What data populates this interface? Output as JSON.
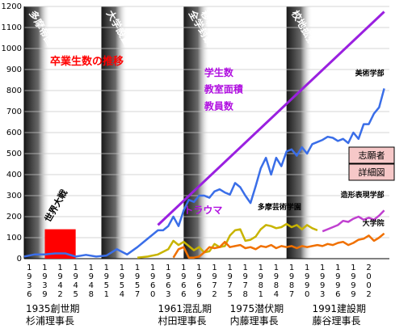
{
  "chart_data": {
    "type": "line",
    "title": "卒業生数の推移",
    "ylim": [
      0,
      1200
    ],
    "yticks": [
      0,
      100,
      200,
      300,
      400,
      500,
      600,
      700,
      800,
      900,
      1000,
      1100,
      1200
    ],
    "xlim": [
      1935,
      2006
    ],
    "x_ticks": [
      {
        "year": 1936,
        "label": "1936"
      },
      {
        "year": 1939,
        "label": "1939"
      },
      {
        "year": 1942,
        "label": "1942"
      },
      {
        "year": 1945,
        "label": "1945"
      },
      {
        "year": 1948,
        "label": "1948"
      },
      {
        "year": 1951,
        "label": "1951"
      },
      {
        "year": 1954,
        "label": "1954"
      },
      {
        "year": 1957,
        "label": "1957"
      },
      {
        "year": 1960,
        "label": "1960"
      },
      {
        "year": 1963,
        "label": "1963"
      },
      {
        "year": 1966,
        "label": "1966"
      },
      {
        "year": 1969,
        "label": "1969"
      },
      {
        "year": 1972,
        "label": "1972"
      },
      {
        "year": 1975,
        "label": "1975"
      },
      {
        "year": 1978,
        "label": "1978"
      },
      {
        "year": 1981,
        "label": "1981"
      },
      {
        "year": 1984,
        "label": "1984"
      },
      {
        "year": 1987,
        "label": "1987"
      },
      {
        "year": 1990,
        "label": "1990"
      },
      {
        "year": 1993,
        "label": "1993"
      },
      {
        "year": 1996,
        "label": "1996"
      },
      {
        "year": 1999,
        "label": "1999"
      },
      {
        "year": 2002,
        "label": "2002"
      }
    ],
    "bands": [
      {
        "start": 1935,
        "end": 1940,
        "label": "多摩帝国"
      },
      {
        "start": 1950,
        "end": 1955,
        "label": "大学設置"
      },
      {
        "start": 1966,
        "end": 1971,
        "label": "全学封鎖 移転開始"
      },
      {
        "start": 1986,
        "end": 1991,
        "label": "校地拡張"
      }
    ],
    "war_bar": {
      "start": 1939,
      "end": 1945,
      "value": 140,
      "label": "世界大戦",
      "color": "#ff0000"
    },
    "series": [
      {
        "name": "美術学部",
        "color": "#3a6ee8",
        "points": [
          [
            1935,
            10
          ],
          [
            1937,
            20
          ],
          [
            1939,
            20
          ],
          [
            1941,
            25
          ],
          [
            1943,
            25
          ],
          [
            1945,
            10
          ],
          [
            1947,
            18
          ],
          [
            1949,
            10
          ],
          [
            1951,
            15
          ],
          [
            1953,
            45
          ],
          [
            1955,
            20
          ],
          [
            1957,
            55
          ],
          [
            1958,
            75
          ],
          [
            1961,
            135
          ],
          [
            1962,
            135
          ],
          [
            1963,
            155
          ],
          [
            1964,
            200
          ],
          [
            1965,
            155
          ],
          [
            1966,
            230
          ],
          [
            1967,
            280
          ],
          [
            1968,
            270
          ],
          [
            1969,
            300
          ],
          [
            1970,
            300
          ],
          [
            1971,
            290
          ],
          [
            1972,
            320
          ],
          [
            1973,
            330
          ],
          [
            1974,
            315
          ],
          [
            1975,
            305
          ],
          [
            1976,
            360
          ],
          [
            1977,
            340
          ],
          [
            1978,
            300
          ],
          [
            1979,
            265
          ],
          [
            1980,
            345
          ],
          [
            1981,
            430
          ],
          [
            1982,
            480
          ],
          [
            1983,
            400
          ],
          [
            1984,
            480
          ],
          [
            1985,
            440
          ],
          [
            1986,
            510
          ],
          [
            1987,
            520
          ],
          [
            1988,
            490
          ],
          [
            1989,
            530
          ],
          [
            1990,
            500
          ],
          [
            1991,
            545
          ],
          [
            1992,
            555
          ],
          [
            1993,
            565
          ],
          [
            1994,
            580
          ],
          [
            1995,
            575
          ],
          [
            1996,
            560
          ],
          [
            1997,
            570
          ],
          [
            1998,
            550
          ],
          [
            1999,
            600
          ],
          [
            2000,
            570
          ],
          [
            2001,
            640
          ],
          [
            2002,
            640
          ],
          [
            2003,
            690
          ],
          [
            2004,
            720
          ],
          [
            2005,
            810
          ]
        ]
      },
      {
        "name": "多摩芸術学園",
        "color": "#c8b400",
        "points": [
          [
            1957,
            5
          ],
          [
            1959,
            10
          ],
          [
            1961,
            20
          ],
          [
            1963,
            45
          ],
          [
            1964,
            85
          ],
          [
            1965,
            65
          ],
          [
            1966,
            80
          ],
          [
            1967,
            60
          ],
          [
            1968,
            40
          ],
          [
            1969,
            55
          ],
          [
            1970,
            30
          ],
          [
            1971,
            35
          ],
          [
            1972,
            70
          ],
          [
            1973,
            55
          ],
          [
            1974,
            60
          ],
          [
            1975,
            110
          ],
          [
            1976,
            135
          ],
          [
            1977,
            140
          ],
          [
            1978,
            85
          ],
          [
            1979,
            90
          ],
          [
            1980,
            105
          ],
          [
            1981,
            140
          ],
          [
            1982,
            160
          ],
          [
            1983,
            155
          ],
          [
            1984,
            145
          ],
          [
            1985,
            150
          ],
          [
            1986,
            165
          ],
          [
            1987,
            150
          ],
          [
            1988,
            160
          ],
          [
            1989,
            140
          ],
          [
            1990,
            160
          ],
          [
            1991,
            145
          ],
          [
            1992,
            135
          ]
        ]
      },
      {
        "name": "造形表現学部",
        "color": "#c040d0",
        "points": [
          [
            1993,
            130
          ],
          [
            1994,
            140
          ],
          [
            1995,
            150
          ],
          [
            1996,
            160
          ],
          [
            1997,
            180
          ],
          [
            1998,
            175
          ],
          [
            1999,
            190
          ],
          [
            2000,
            200
          ],
          [
            2001,
            185
          ],
          [
            2002,
            195
          ],
          [
            2003,
            185
          ],
          [
            2004,
            205
          ],
          [
            2005,
            230
          ]
        ]
      },
      {
        "name": "大学院",
        "color": "#f07000",
        "points": [
          [
            1964,
            5
          ],
          [
            1965,
            45
          ],
          [
            1966,
            55
          ],
          [
            1967,
            5
          ],
          [
            1968,
            5
          ],
          [
            1969,
            10
          ],
          [
            1970,
            30
          ],
          [
            1971,
            55
          ],
          [
            1972,
            50
          ],
          [
            1973,
            55
          ],
          [
            1974,
            80
          ],
          [
            1975,
            55
          ],
          [
            1976,
            60
          ],
          [
            1977,
            65
          ],
          [
            1978,
            50
          ],
          [
            1979,
            55
          ],
          [
            1980,
            45
          ],
          [
            1981,
            60
          ],
          [
            1982,
            55
          ],
          [
            1983,
            65
          ],
          [
            1984,
            50
          ],
          [
            1985,
            60
          ],
          [
            1986,
            55
          ],
          [
            1987,
            60
          ],
          [
            1988,
            50
          ],
          [
            1989,
            60
          ],
          [
            1990,
            55
          ],
          [
            1991,
            60
          ],
          [
            1992,
            65
          ],
          [
            1993,
            60
          ],
          [
            1994,
            70
          ],
          [
            1995,
            65
          ],
          [
            1996,
            75
          ],
          [
            1997,
            80
          ],
          [
            1998,
            65
          ],
          [
            1999,
            75
          ],
          [
            2000,
            90
          ],
          [
            2001,
            95
          ],
          [
            2002,
            110
          ],
          [
            2003,
            85
          ],
          [
            2004,
            100
          ],
          [
            2005,
            120
          ]
        ]
      },
      {
        "name": "教室面積",
        "color": "#9a20e0",
        "points": [
          [
            1961,
            160
          ],
          [
            2005,
            1175
          ]
        ]
      }
    ],
    "annotations": [
      {
        "text": "学生数",
        "color": "#b010e0",
        "series": "美術学部"
      },
      {
        "text": "教室面積",
        "color": "#b010e0",
        "series": "教室面積"
      },
      {
        "text": "教員数",
        "color": "#b010e0",
        "series": "大学院"
      },
      {
        "text": "トラウマ",
        "color": "#b010e0"
      }
    ],
    "eras": [
      {
        "year": 1935,
        "line1": "1935創世期",
        "line2": "杉浦理事長"
      },
      {
        "year": 1961,
        "line1": "1961混乱期",
        "line2": "村田理事長"
      },
      {
        "year": 1975,
        "line1": "1975潜伏期",
        "line2": "内藤理事長"
      },
      {
        "year": 1991,
        "line1": "1991建設期",
        "line2": "藤谷理事長"
      }
    ],
    "legend_buttons": [
      {
        "label": "志願者"
      },
      {
        "label": "詳細図"
      }
    ]
  }
}
